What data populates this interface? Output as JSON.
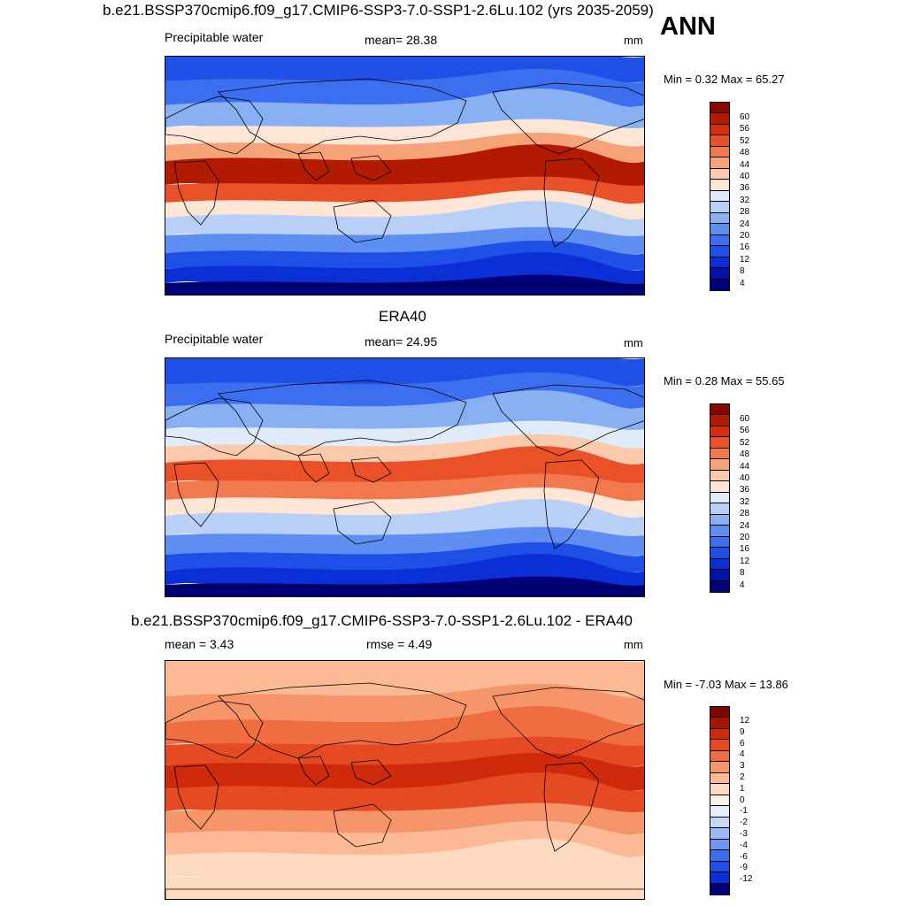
{
  "colors": {
    "abs_scale": [
      "#00007a",
      "#0012a8",
      "#0a2fd6",
      "#1e4fe6",
      "#3c6ef0",
      "#5f8ef2",
      "#8ab0f4",
      "#b9d0f6",
      "#e1ecfa",
      "#fde6d6",
      "#fbc9ab",
      "#f7a37a",
      "#f2784e",
      "#ea5128",
      "#d52e0f",
      "#b21a02",
      "#880800"
    ],
    "diff_scale": [
      "#00007a",
      "#0a2fd6",
      "#1e4fe6",
      "#3c6ef0",
      "#6f97f2",
      "#9dbaf4",
      "#c6d8f8",
      "#e6eefb",
      "#fff0e4",
      "#fdd9bf",
      "#fbb995",
      "#f7956a",
      "#f06d41",
      "#e54a22",
      "#cf2a0b",
      "#a81400",
      "#7c0600"
    ],
    "land_outline": "#000000"
  },
  "panels": [
    {
      "title": "b.e21.BSSP370cmip6.f09_g17.CMIP6-SSP3-7.0-SSP1-2.6Lu.102 (yrs 2035-2059)",
      "left_label": "Precipitable water",
      "center_label": "mean=  28.38",
      "units": "mm",
      "minmax": "Min =   0.32 Max =  65.27",
      "field_kind": "model",
      "colorbar_ticks": [
        "60",
        "56",
        "52",
        "48",
        "44",
        "40",
        "36",
        "32",
        "28",
        "24",
        "20",
        "16",
        "12",
        "8",
        "4"
      ]
    },
    {
      "title": "ERA40",
      "left_label": "Precipitable water",
      "center_label": "mean=  24.95",
      "units": "mm",
      "minmax": "Min =   0.28 Max =  55.65",
      "field_kind": "obs",
      "colorbar_ticks": [
        "60",
        "56",
        "52",
        "48",
        "44",
        "40",
        "36",
        "32",
        "28",
        "24",
        "20",
        "16",
        "12",
        "8",
        "4"
      ]
    },
    {
      "title": "b.e21.BSSP370cmip6.f09_g17.CMIP6-SSP3-7.0-SSP1-2.6Lu.102 - ERA40",
      "left_label": "mean =   3.43",
      "center_label": "rmse =   4.49",
      "units": "mm",
      "minmax": "Min =  -7.03 Max =  13.86",
      "field_kind": "diff",
      "colorbar_ticks": [
        "12",
        "9",
        "6",
        "4",
        "3",
        "2",
        "1",
        "0",
        "-1",
        "-2",
        "-3",
        "-4",
        "-6",
        "-9",
        "-12"
      ]
    }
  ],
  "season": "ANN"
}
